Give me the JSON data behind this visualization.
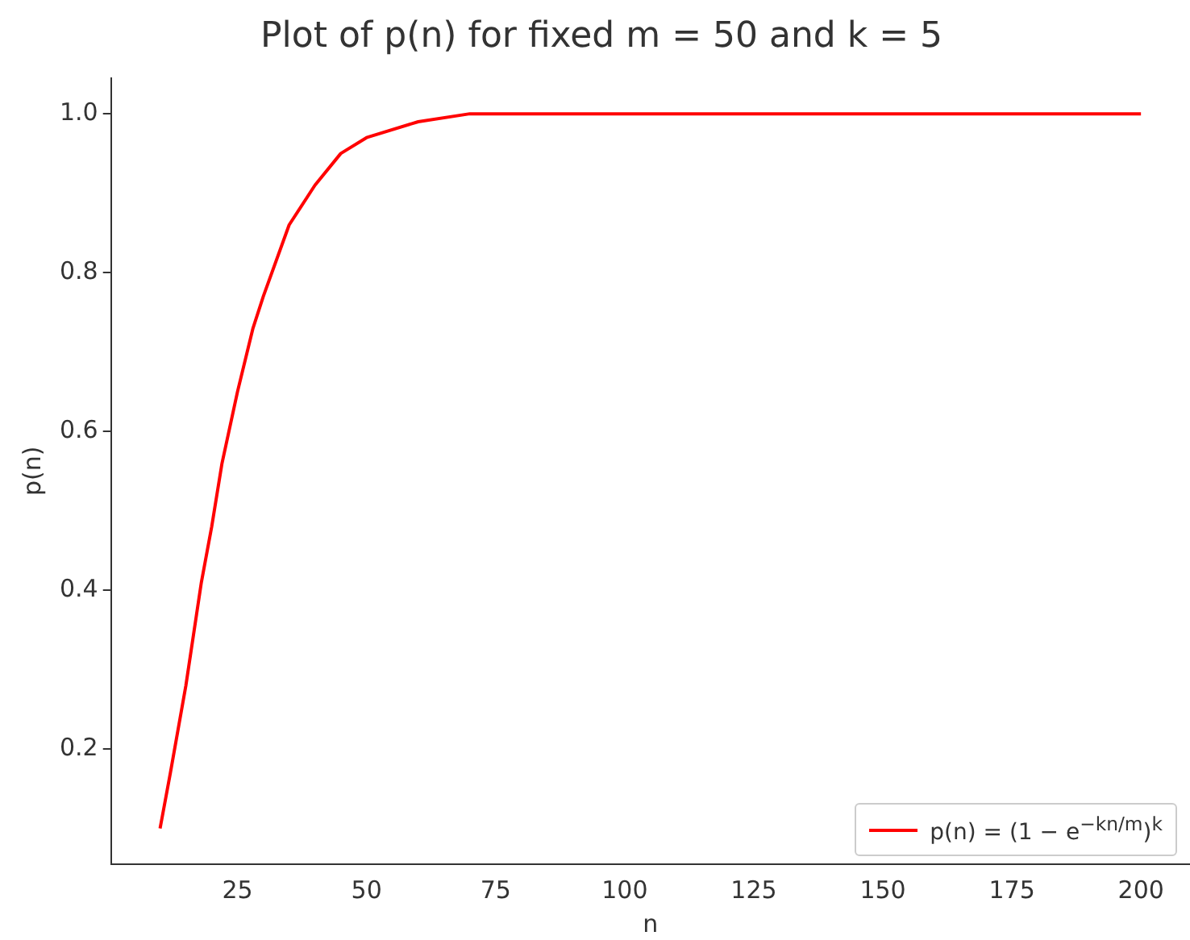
{
  "chart_data": {
    "type": "line",
    "title": "Plot of p(n) for fixed m = 50 and k = 5",
    "xlabel": "n",
    "ylabel": "p(n)",
    "x": [
      10,
      12,
      15,
      18,
      20,
      22,
      25,
      28,
      30,
      35,
      40,
      45,
      50,
      60,
      70,
      80,
      100,
      150,
      200
    ],
    "series": [
      {
        "name": "p(n) = (1 − e$^{−kn/m}$)$^{k}$",
        "color": "#ff0000",
        "values": [
          0.1,
          0.17,
          0.28,
          0.41,
          0.48,
          0.56,
          0.65,
          0.73,
          0.77,
          0.86,
          0.91,
          0.95,
          0.97,
          0.99,
          1.0,
          1.0,
          1.0,
          1.0,
          1.0
        ]
      }
    ],
    "xlim": [
      0.5,
      209.5
    ],
    "xticks": [
      25,
      50,
      75,
      100,
      125,
      150,
      175,
      200
    ],
    "ylim": [
      0.055,
      1.045
    ],
    "yticks": [
      0.2,
      0.4,
      0.6,
      0.8,
      {
        "value": 1,
        "label": "1.0"
      }
    ],
    "grid": false,
    "legend": "bottom right",
    "marker": "none",
    "line_style": "solid"
  }
}
